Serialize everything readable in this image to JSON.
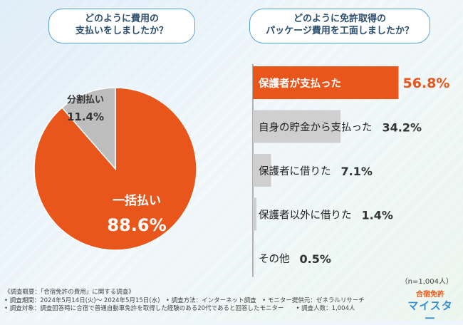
{
  "left_title": {
    "line1": "どのように費用の",
    "line2": "支払いをしましたか？"
  },
  "right_title": {
    "line1": "どのように免許取得の",
    "line2": "パッケージ費用を工面しましたか？"
  },
  "colors": {
    "accent": "#e8561b",
    "gray": "#bdbdbd",
    "bar_gray": "#cfcfcf"
  },
  "chart_data": [
    {
      "type": "pie",
      "title": "どのように費用の支払いをしましたか？",
      "categories": [
        "一括払い",
        "分割払い"
      ],
      "values": [
        88.6,
        11.4
      ],
      "value_labels": [
        "88.6%",
        "11.4%"
      ]
    },
    {
      "type": "bar",
      "orientation": "horizontal",
      "title": "どのように免許取得のパッケージ費用を工面しましたか？",
      "categories": [
        "保護者が支払った",
        "自身の貯金から支払った",
        "保護者に借りた",
        "保護者以外に借りた",
        "その他"
      ],
      "values": [
        56.8,
        34.2,
        7.1,
        1.4,
        0.5
      ],
      "value_labels": [
        "56.8%",
        "34.2%",
        "7.1%",
        "1.4%",
        "0.5%"
      ],
      "xlim": [
        0,
        100
      ]
    }
  ],
  "n_label": "（n=1,004人）",
  "survey_notes": [
    "《調査概要：「合宿免許の費用」に関する調査》",
    "• 調査期間：2024年5月14日(火)～ 2024年5月15日(水)　• 調査方法：インターネット調査　• モニター提供元：ゼネラルリサーチ",
    "• 調査対象：調査回答時に合宿で普通自動車免許を取得した経験のある20代であると回答したモニター　　• 調査人数：1,004人"
  ],
  "logo": {
    "line1": "合宿免許",
    "line2": "マイスター"
  }
}
